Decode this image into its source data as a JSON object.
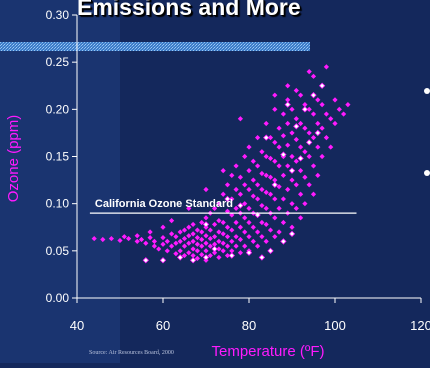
{
  "slide": {
    "title": "Emissions and More",
    "source": "Source: Air Resources Board, 2000",
    "bullet_count": 2
  },
  "colors": {
    "background": "#14285c",
    "left_panel": "#1a3470",
    "points": "#ff1aff",
    "standard_line": "#ffffff",
    "axis_text": "#ffffff",
    "title_bar": "#5a9ae0"
  },
  "chart_data": {
    "type": "scatter",
    "title": "",
    "xlabel": "Temperature (ºF)",
    "ylabel": "Ozone (ppm)",
    "xlim": [
      40,
      120
    ],
    "ylim": [
      0,
      0.3
    ],
    "x_ticks": [
      "40",
      "60",
      "80",
      "100",
      "120"
    ],
    "y_ticks": [
      "0.00",
      "0.05",
      "0.10",
      "0.15",
      "0.20",
      "0.25",
      "0.30"
    ],
    "grid": false,
    "legend": "none",
    "annotations": [
      {
        "text": "California Ozone Standard",
        "y": 0.09
      }
    ],
    "standard_line": {
      "y": 0.09,
      "x_range": [
        43,
        105
      ]
    },
    "points": [
      [
        44,
        0.063
      ],
      [
        46,
        0.062
      ],
      [
        48,
        0.063
      ],
      [
        50,
        0.061
      ],
      [
        52,
        0.063
      ],
      [
        54,
        0.06
      ],
      [
        55,
        0.062
      ],
      [
        56,
        0.058
      ],
      [
        57,
        0.064
      ],
      [
        58,
        0.055
      ],
      [
        58,
        0.06
      ],
      [
        59,
        0.052
      ],
      [
        60,
        0.057
      ],
      [
        60,
        0.064
      ],
      [
        61,
        0.05
      ],
      [
        61,
        0.06
      ],
      [
        62,
        0.055
      ],
      [
        62,
        0.068
      ],
      [
        63,
        0.047
      ],
      [
        63,
        0.058
      ],
      [
        63,
        0.065
      ],
      [
        64,
        0.05
      ],
      [
        64,
        0.06
      ],
      [
        64,
        0.07
      ],
      [
        65,
        0.045
      ],
      [
        65,
        0.055
      ],
      [
        65,
        0.063
      ],
      [
        65,
        0.072
      ],
      [
        66,
        0.048
      ],
      [
        66,
        0.058
      ],
      [
        66,
        0.066
      ],
      [
        66,
        0.075
      ],
      [
        67,
        0.045
      ],
      [
        67,
        0.052
      ],
      [
        67,
        0.06
      ],
      [
        67,
        0.068
      ],
      [
        67,
        0.078
      ],
      [
        68,
        0.042
      ],
      [
        68,
        0.05
      ],
      [
        68,
        0.057
      ],
      [
        68,
        0.064
      ],
      [
        68,
        0.072
      ],
      [
        69,
        0.046
      ],
      [
        69,
        0.055
      ],
      [
        69,
        0.062
      ],
      [
        69,
        0.07
      ],
      [
        69,
        0.08
      ],
      [
        70,
        0.04
      ],
      [
        70,
        0.05
      ],
      [
        70,
        0.058
      ],
      [
        70,
        0.066
      ],
      [
        70,
        0.075
      ],
      [
        70,
        0.085
      ],
      [
        71,
        0.045
      ],
      [
        71,
        0.055
      ],
      [
        71,
        0.063
      ],
      [
        71,
        0.072
      ],
      [
        71,
        0.09
      ],
      [
        72,
        0.048
      ],
      [
        72,
        0.057
      ],
      [
        72,
        0.065
      ],
      [
        72,
        0.078
      ],
      [
        72,
        0.095
      ],
      [
        73,
        0.043
      ],
      [
        73,
        0.052
      ],
      [
        73,
        0.06
      ],
      [
        73,
        0.07
      ],
      [
        73,
        0.082
      ],
      [
        73,
        0.1
      ],
      [
        74,
        0.05
      ],
      [
        74,
        0.058
      ],
      [
        74,
        0.068
      ],
      [
        74,
        0.08
      ],
      [
        74,
        0.11
      ],
      [
        75,
        0.045
      ],
      [
        75,
        0.055
      ],
      [
        75,
        0.065
      ],
      [
        75,
        0.075
      ],
      [
        75,
        0.092
      ],
      [
        75,
        0.12
      ],
      [
        76,
        0.05
      ],
      [
        76,
        0.06
      ],
      [
        76,
        0.072
      ],
      [
        76,
        0.088
      ],
      [
        76,
        0.105
      ],
      [
        76,
        0.13
      ],
      [
        77,
        0.055
      ],
      [
        77,
        0.065
      ],
      [
        77,
        0.08
      ],
      [
        77,
        0.095
      ],
      [
        77,
        0.115
      ],
      [
        77,
        0.14
      ],
      [
        78,
        0.048
      ],
      [
        78,
        0.062
      ],
      [
        78,
        0.075
      ],
      [
        78,
        0.09
      ],
      [
        78,
        0.11
      ],
      [
        78,
        0.128
      ],
      [
        79,
        0.055
      ],
      [
        79,
        0.07
      ],
      [
        79,
        0.085
      ],
      [
        79,
        0.1
      ],
      [
        79,
        0.12
      ],
      [
        79,
        0.15
      ],
      [
        80,
        0.05
      ],
      [
        80,
        0.065
      ],
      [
        80,
        0.08
      ],
      [
        80,
        0.095
      ],
      [
        80,
        0.115
      ],
      [
        80,
        0.135
      ],
      [
        80,
        0.16
      ],
      [
        81,
        0.06
      ],
      [
        81,
        0.075
      ],
      [
        81,
        0.09
      ],
      [
        81,
        0.108
      ],
      [
        81,
        0.125
      ],
      [
        81,
        0.145
      ],
      [
        82,
        0.055
      ],
      [
        82,
        0.07
      ],
      [
        82,
        0.088
      ],
      [
        82,
        0.105
      ],
      [
        82,
        0.12
      ],
      [
        82,
        0.14
      ],
      [
        82,
        0.17
      ],
      [
        83,
        0.065
      ],
      [
        83,
        0.08
      ],
      [
        83,
        0.098
      ],
      [
        83,
        0.115
      ],
      [
        83,
        0.132
      ],
      [
        83,
        0.155
      ],
      [
        84,
        0.06
      ],
      [
        84,
        0.078
      ],
      [
        84,
        0.095
      ],
      [
        84,
        0.112
      ],
      [
        84,
        0.13
      ],
      [
        84,
        0.15
      ],
      [
        84,
        0.185
      ],
      [
        85,
        0.05
      ],
      [
        85,
        0.072
      ],
      [
        85,
        0.09
      ],
      [
        85,
        0.11
      ],
      [
        85,
        0.128
      ],
      [
        85,
        0.148
      ],
      [
        85,
        0.17
      ],
      [
        86,
        0.065
      ],
      [
        86,
        0.085
      ],
      [
        86,
        0.105
      ],
      [
        86,
        0.125
      ],
      [
        86,
        0.145
      ],
      [
        86,
        0.165
      ],
      [
        86,
        0.2
      ],
      [
        87,
        0.07
      ],
      [
        87,
        0.095
      ],
      [
        87,
        0.118
      ],
      [
        87,
        0.14
      ],
      [
        87,
        0.16
      ],
      [
        87,
        0.18
      ],
      [
        88,
        0.08
      ],
      [
        88,
        0.105
      ],
      [
        88,
        0.13
      ],
      [
        88,
        0.15
      ],
      [
        88,
        0.172
      ],
      [
        88,
        0.195
      ],
      [
        89,
        0.09
      ],
      [
        89,
        0.115
      ],
      [
        89,
        0.14
      ],
      [
        89,
        0.162
      ],
      [
        89,
        0.185
      ],
      [
        89,
        0.21
      ],
      [
        90,
        0.075
      ],
      [
        90,
        0.1
      ],
      [
        90,
        0.125
      ],
      [
        90,
        0.15
      ],
      [
        90,
        0.175
      ],
      [
        90,
        0.2
      ],
      [
        91,
        0.095
      ],
      [
        91,
        0.12
      ],
      [
        91,
        0.145
      ],
      [
        91,
        0.168
      ],
      [
        91,
        0.19
      ],
      [
        91,
        0.22
      ],
      [
        92,
        0.085
      ],
      [
        92,
        0.11
      ],
      [
        92,
        0.135
      ],
      [
        92,
        0.16
      ],
      [
        92,
        0.185
      ],
      [
        92,
        0.215
      ],
      [
        93,
        0.1
      ],
      [
        93,
        0.128
      ],
      [
        93,
        0.155
      ],
      [
        93,
        0.18
      ],
      [
        93,
        0.205
      ],
      [
        94,
        0.12
      ],
      [
        94,
        0.15
      ],
      [
        94,
        0.175
      ],
      [
        94,
        0.2
      ],
      [
        94,
        0.24
      ],
      [
        95,
        0.11
      ],
      [
        95,
        0.14
      ],
      [
        95,
        0.17
      ],
      [
        95,
        0.195
      ],
      [
        96,
        0.13
      ],
      [
        96,
        0.16
      ],
      [
        96,
        0.185
      ],
      [
        96,
        0.21
      ],
      [
        97,
        0.15
      ],
      [
        97,
        0.18
      ],
      [
        97,
        0.205
      ],
      [
        98,
        0.17
      ],
      [
        98,
        0.195
      ],
      [
        99,
        0.16
      ],
      [
        99,
        0.19
      ],
      [
        100,
        0.185
      ],
      [
        100,
        0.21
      ],
      [
        101,
        0.2
      ],
      [
        102,
        0.195
      ],
      [
        103,
        0.205
      ],
      [
        98,
        0.245
      ],
      [
        95,
        0.235
      ],
      [
        89,
        0.225
      ],
      [
        86,
        0.215
      ],
      [
        78,
        0.19
      ],
      [
        74,
        0.135
      ],
      [
        70,
        0.115
      ],
      [
        66,
        0.095
      ],
      [
        62,
        0.082
      ],
      [
        60,
        0.075
      ],
      [
        57,
        0.07
      ],
      [
        54,
        0.066
      ],
      [
        51,
        0.065
      ]
    ],
    "highlighted_points": [
      [
        56,
        0.04
      ],
      [
        60,
        0.04
      ],
      [
        64,
        0.043
      ],
      [
        67,
        0.04
      ],
      [
        70,
        0.043
      ],
      [
        72,
        0.052
      ],
      [
        76,
        0.045
      ],
      [
        80,
        0.048
      ],
      [
        83,
        0.043
      ],
      [
        85,
        0.05
      ],
      [
        88,
        0.06
      ],
      [
        90,
        0.068
      ],
      [
        82,
        0.088
      ],
      [
        78,
        0.098
      ],
      [
        75,
        0.105
      ],
      [
        70,
        0.078
      ],
      [
        86,
        0.12
      ],
      [
        90,
        0.135
      ],
      [
        92,
        0.148
      ],
      [
        88,
        0.152
      ],
      [
        94,
        0.165
      ],
      [
        96,
        0.175
      ],
      [
        91,
        0.182
      ],
      [
        84,
        0.17
      ],
      [
        93,
        0.2
      ],
      [
        95,
        0.215
      ],
      [
        89,
        0.205
      ],
      [
        97,
        0.225
      ]
    ]
  }
}
